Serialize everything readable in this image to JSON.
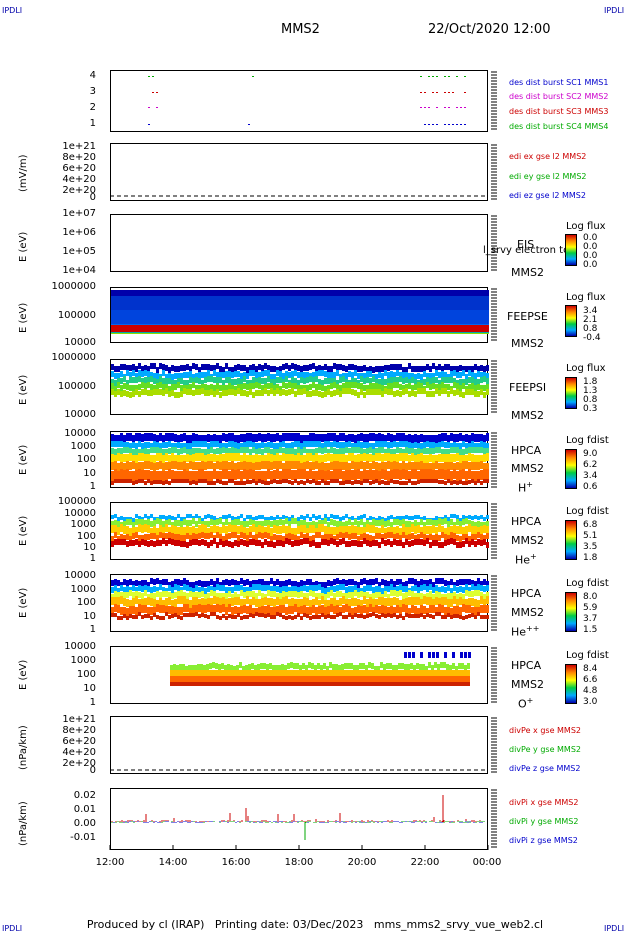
{
  "header": {
    "corner_label": "IPDLI",
    "title": "MMS2",
    "datetime": "22/Oct/2020 12:00"
  },
  "footer": {
    "produced_by": "Produced by cl (IRAP)",
    "printing_date": "Printing date: 03/Dec/2023",
    "file": "mms_mms2_srvy_vue_web2.cl"
  },
  "x_axis": {
    "ticks": [
      "12:00",
      "14:00",
      "16:00",
      "18:00",
      "20:00",
      "22:00",
      "00:00"
    ]
  },
  "panels": {
    "burst": {
      "yticks": [
        "4",
        "3",
        "2",
        "1"
      ],
      "labels": [
        {
          "text": "des dist burst SC1 MMS1",
          "color": "#0000cc"
        },
        {
          "text": "des dist burst SC2 MMS2",
          "color": "#cc00cc"
        },
        {
          "text": "des dist burst SC3 MMS3",
          "color": "#cc0000"
        },
        {
          "text": "des dist burst SC4 MMS4",
          "color": "#00aa00"
        }
      ]
    },
    "edi": {
      "ylabel": "(mV/m)",
      "yticks": [
        "1e+21",
        "8e+20",
        "6e+20",
        "4e+20",
        "2e+20",
        "0"
      ],
      "labels": [
        {
          "text": "edi ex gse l2 MMS2",
          "color": "#cc0000"
        },
        {
          "text": "edi ey gse l2 MMS2",
          "color": "#00aa00"
        },
        {
          "text": "edi ez gse l2 MMS2",
          "color": "#0000cc"
        }
      ]
    },
    "eis": {
      "ylabel": "E (eV)",
      "yticks": [
        "1e+07",
        "1e+06",
        "1e+05",
        "1e+04"
      ],
      "instrument": "EIS",
      "spacecraft": "MMS2",
      "overlay": "l_srvy electron to",
      "cb_title": "Log flux",
      "cb_values": [
        "0.0",
        "0.0",
        "0.0",
        "0.0"
      ]
    },
    "feepse": {
      "ylabel": "E (eV)",
      "yticks": [
        "1000000",
        "100000",
        "10000"
      ],
      "instrument": "FEEPSE",
      "spacecraft": "MMS2",
      "cb_title": "Log flux",
      "cb_values": [
        "3.4",
        "2.1",
        "0.8",
        "-0.4"
      ]
    },
    "feepsi": {
      "ylabel": "E (eV)",
      "yticks": [
        "1000000",
        "100000",
        "10000"
      ],
      "instrument": "FEEPSI",
      "spacecraft": "MMS2",
      "cb_title": "Log flux",
      "cb_values": [
        "1.8",
        "1.3",
        "0.8",
        "0.3"
      ]
    },
    "hpca_h": {
      "ylabel": "E (eV)",
      "yticks": [
        "10000",
        "1000",
        "100",
        "10",
        "1"
      ],
      "instrument": "HPCA",
      "spacecraft": "MMS2",
      "species": "H",
      "charge": "+",
      "cb_title": "Log fdist",
      "cb_values": [
        "9.0",
        "6.2",
        "3.4",
        "0.6"
      ]
    },
    "hpca_he": {
      "ylabel": "E (eV)",
      "yticks": [
        "100000",
        "10000",
        "1000",
        "100",
        "10",
        "1"
      ],
      "instrument": "HPCA",
      "spacecraft": "MMS2",
      "species": "He",
      "charge": "+",
      "cb_title": "Log fdist",
      "cb_values": [
        "6.8",
        "5.1",
        "3.5",
        "1.8"
      ]
    },
    "hpca_hepp": {
      "ylabel": "E (eV)",
      "yticks": [
        "10000",
        "1000",
        "100",
        "10",
        "1"
      ],
      "instrument": "HPCA",
      "spacecraft": "MMS2",
      "species": "He",
      "charge": "++",
      "cb_title": "Log fdist",
      "cb_values": [
        "8.0",
        "5.9",
        "3.7",
        "1.5"
      ]
    },
    "hpca_o": {
      "ylabel": "E (eV)",
      "yticks": [
        "10000",
        "1000",
        "100",
        "10",
        "1"
      ],
      "instrument": "HPCA",
      "spacecraft": "MMS2",
      "species": "O",
      "charge": "+",
      "cb_title": "Log fdist",
      "cb_values": [
        "8.4",
        "6.6",
        "4.8",
        "3.0"
      ]
    },
    "divpe": {
      "ylabel": "(nPa/km)",
      "yticks": [
        "1e+21",
        "8e+20",
        "6e+20",
        "4e+20",
        "2e+20",
        "0"
      ],
      "labels": [
        {
          "text": "divPe x gse MMS2",
          "color": "#cc0000"
        },
        {
          "text": "divPe y gse MMS2",
          "color": "#00aa00"
        },
        {
          "text": "divPe z gse MMS2",
          "color": "#0000cc"
        }
      ]
    },
    "divpi": {
      "ylabel": "(nPa/km)",
      "yticks": [
        "0.02",
        "0.01",
        "0.00",
        "-0.01"
      ],
      "labels": [
        {
          "text": "divPi x gse MMS2",
          "color": "#cc0000"
        },
        {
          "text": "divPi y gse MMS2",
          "color": "#00aa00"
        },
        {
          "text": "divPi z gse MMS2",
          "color": "#0000cc"
        }
      ]
    }
  },
  "chart_data": {
    "type": "heatmap",
    "x_range": [
      "12:00",
      "00:00"
    ],
    "spectrograms": [
      {
        "name": "FEEPSE",
        "y_range": [
          10000,
          1000000
        ],
        "scale": "log",
        "colorbar_range": [
          -0.4,
          3.4
        ]
      },
      {
        "name": "FEEPSI",
        "y_range": [
          10000,
          1000000
        ],
        "scale": "log",
        "colorbar_range": [
          0.3,
          1.8
        ]
      },
      {
        "name": "HPCA H+",
        "y_range": [
          1,
          10000
        ],
        "scale": "log",
        "colorbar_range": [
          0.6,
          9.0
        ]
      },
      {
        "name": "HPCA He+",
        "y_range": [
          1,
          100000
        ],
        "scale": "log",
        "colorbar_range": [
          1.8,
          6.8
        ]
      },
      {
        "name": "HPCA He++",
        "y_range": [
          1,
          10000
        ],
        "scale": "log",
        "colorbar_range": [
          1.5,
          8.0
        ]
      },
      {
        "name": "HPCA O+",
        "y_range": [
          1,
          10000
        ],
        "scale": "log",
        "colorbar_range": [
          3.0,
          8.4
        ]
      }
    ],
    "divpi_ylim": [
      -0.015,
      0.025
    ]
  }
}
